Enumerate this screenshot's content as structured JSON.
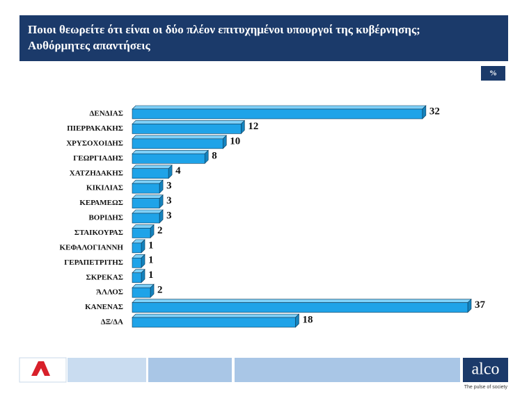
{
  "chart_data": {
    "type": "bar",
    "orientation": "horizontal",
    "title": "Ποιοι θεωρείτε ότι είναι οι δύο πλέον επιτυχημένοι υπουργοί της κυβέρνησης;",
    "subtitle": "Αυθόρμητες απαντήσεις",
    "unit": "%",
    "categories": [
      "ΔΕΝΔΙΑΣ",
      "ΠΙΕΡΡΑΚΑΚΗΣ",
      "ΧΡΥΣΟΧΟΙΔΗΣ",
      "ΓΕΩΡΓΙΑΔΗΣ",
      "ΧΑΤΖΗΔΑΚΗΣ",
      "ΚΙΚΙΛΙΑΣ",
      "ΚΕΡΑΜΕΩΣ",
      "ΒΟΡΙΔΗΣ",
      "ΣΤΑΙΚΟΥΡΑΣ",
      "ΚΕΦΑΛΟΓΙΑΝΝΗ",
      "ΓΕΡΑΠΕΤΡΙΤΗΣ",
      "ΣΚΡΕΚΑΣ",
      "ΆΛΛΟΣ",
      "ΚΑΝΕΝΑΣ",
      "ΔΞ/ΔΑ"
    ],
    "values": [
      32,
      12,
      10,
      8,
      4,
      3,
      3,
      3,
      2,
      1,
      1,
      1,
      2,
      37,
      18
    ],
    "color": "#1fa3e8"
  },
  "footer": {
    "brand": "alco",
    "tagline": "The pulse of society"
  }
}
